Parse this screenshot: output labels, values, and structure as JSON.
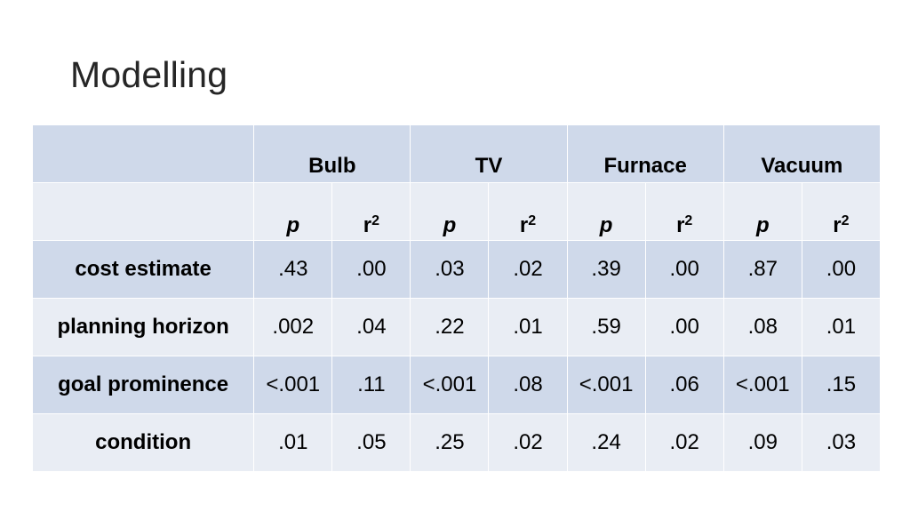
{
  "slide": {
    "title": "Modelling"
  },
  "table": {
    "groups": [
      "Bulb",
      "TV",
      "Furnace",
      "Vacuum"
    ],
    "subheaders": {
      "p": "p",
      "r": "r",
      "r_sup": "2"
    },
    "rows": [
      {
        "label": "cost estimate",
        "values": [
          ".43",
          ".00",
          ".03",
          ".02",
          ".39",
          ".00",
          ".87",
          ".00"
        ]
      },
      {
        "label": "planning horizon",
        "values": [
          ".002",
          ".04",
          ".22",
          ".01",
          ".59",
          ".00",
          ".08",
          ".01"
        ]
      },
      {
        "label": "goal prominence",
        "values": [
          "<.001",
          ".11",
          "<.001",
          ".08",
          "<.001",
          ".06",
          "<.001",
          ".15"
        ]
      },
      {
        "label": "condition",
        "values": [
          ".01",
          ".05",
          ".25",
          ".02",
          ".24",
          ".02",
          ".09",
          ".03"
        ]
      }
    ]
  },
  "colors": {
    "band_dark": "#cfd9ea",
    "band_light": "#e9edf4",
    "title": "#262626"
  }
}
